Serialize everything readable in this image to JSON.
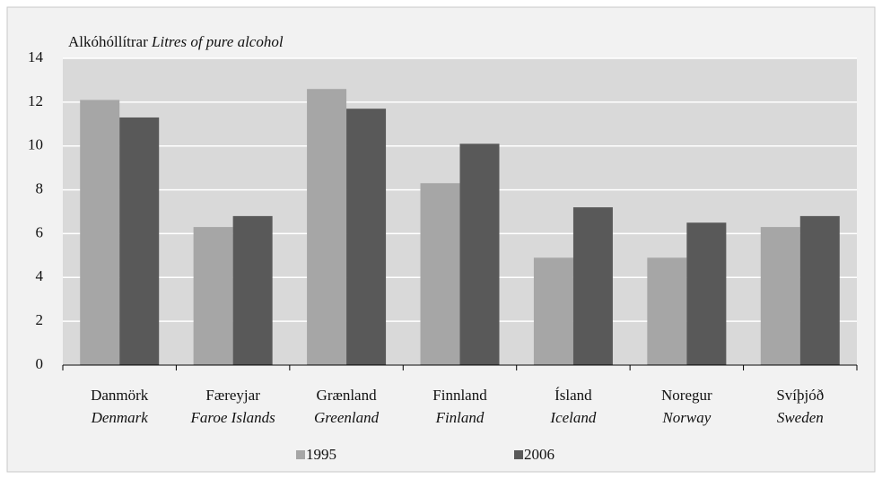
{
  "chart_data": {
    "type": "bar",
    "y_label": "Alkóhóllítrar",
    "y_label_en": "Litres of pure alcohol",
    "categories": [
      "Danmörk",
      "Færeyjar",
      "Grænland",
      "Finnland",
      "Ísland",
      "Noregur",
      "Svíþjóð"
    ],
    "categories_en": [
      "Denmark",
      "Faroe Islands",
      "Greenland",
      "Finland",
      "Iceland",
      "Norway",
      "Sweden"
    ],
    "series": [
      {
        "name": "1995",
        "color": "#a6a6a6",
        "values": [
          12.1,
          6.3,
          12.6,
          8.3,
          4.9,
          4.9,
          6.3
        ]
      },
      {
        "name": "2006",
        "color": "#595959",
        "values": [
          11.3,
          6.8,
          11.7,
          10.1,
          7.2,
          6.5,
          6.8
        ]
      }
    ],
    "ylim": [
      0,
      14
    ],
    "yticks": [
      0,
      2,
      4,
      6,
      8,
      10,
      12,
      14
    ],
    "grid": true
  }
}
